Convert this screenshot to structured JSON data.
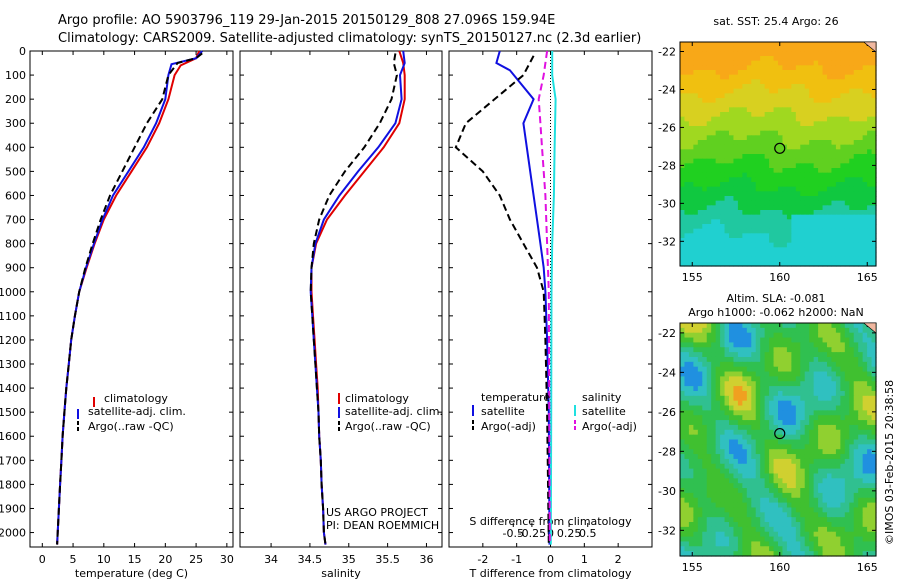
{
  "header": {
    "line1": "Argo profile: AO 5903796_119 29-Jan-2015 20150129_808 27.096S 159.94E",
    "line2": "Climatology: CARS2009. Satellite-adjusted climatology: synTS_20150127.nc (2.3d earlier)"
  },
  "footer_stamp": "©IMOS 03-Feb-2015 20:38:58",
  "colors": {
    "climatology": "#e00000",
    "satellite": "#1010e0",
    "argo": "#000000",
    "sat_salinity": "#20e0e0",
    "argo_adj_salinity": "#e010e0"
  },
  "chart_data": [
    {
      "type": "line",
      "id": "temperature",
      "xlabel": "temperature (deg C)",
      "ylabel": "",
      "xlim": [
        -2,
        31
      ],
      "ylim": [
        2060,
        0
      ],
      "xticks": [
        0,
        5,
        10,
        15,
        20,
        25,
        30
      ],
      "yticks": [
        0,
        100,
        200,
        300,
        400,
        500,
        600,
        700,
        800,
        900,
        1000,
        1100,
        1200,
        1300,
        1400,
        1500,
        1600,
        1700,
        1800,
        1900,
        2000
      ],
      "legend": [
        "climatology",
        "satellite-adj. clim.",
        "Argo(..raw -QC)"
      ],
      "series": [
        {
          "name": "climatology",
          "color": "#e00000",
          "dash": "",
          "points": [
            [
              25.5,
              0
            ],
            [
              25,
              30
            ],
            [
              22.5,
              60
            ],
            [
              21.5,
              100
            ],
            [
              20.5,
              200
            ],
            [
              19,
              300
            ],
            [
              17,
              400
            ],
            [
              14.5,
              500
            ],
            [
              12,
              600
            ],
            [
              10,
              700
            ],
            [
              8.5,
              800
            ],
            [
              7.2,
              900
            ],
            [
              6,
              1000
            ],
            [
              5.3,
              1100
            ],
            [
              4.7,
              1200
            ],
            [
              4.3,
              1300
            ],
            [
              3.9,
              1400
            ],
            [
              3.6,
              1500
            ],
            [
              3.3,
              1600
            ],
            [
              3.1,
              1700
            ],
            [
              2.9,
              1800
            ],
            [
              2.7,
              1900
            ],
            [
              2.5,
              2000
            ],
            [
              2.4,
              2050
            ]
          ]
        },
        {
          "name": "satellite-adj. clim.",
          "color": "#1010e0",
          "dash": "",
          "points": [
            [
              26,
              0
            ],
            [
              25,
              30
            ],
            [
              21,
              55
            ],
            [
              20.5,
              100
            ],
            [
              20,
              200
            ],
            [
              18.5,
              300
            ],
            [
              16.5,
              400
            ],
            [
              14,
              500
            ],
            [
              11.5,
              600
            ],
            [
              9.8,
              700
            ],
            [
              8.4,
              800
            ],
            [
              7.1,
              900
            ],
            [
              6,
              1000
            ],
            [
              5.3,
              1100
            ],
            [
              4.7,
              1200
            ],
            [
              4.3,
              1300
            ],
            [
              3.9,
              1400
            ],
            [
              3.6,
              1500
            ],
            [
              3.3,
              1600
            ],
            [
              3.1,
              1700
            ],
            [
              2.9,
              1800
            ],
            [
              2.7,
              1900
            ],
            [
              2.5,
              2000
            ],
            [
              2.4,
              2050
            ]
          ]
        },
        {
          "name": "Argo(..raw -QC)",
          "color": "#000000",
          "dash": "7,4",
          "points": [
            [
              26,
              10
            ],
            [
              25,
              30
            ],
            [
              22,
              50
            ],
            [
              20.5,
              100
            ],
            [
              19.5,
              200
            ],
            [
              17,
              300
            ],
            [
              15,
              400
            ],
            [
              13,
              500
            ],
            [
              11,
              600
            ],
            [
              9.5,
              700
            ],
            [
              8.2,
              800
            ],
            [
              7,
              900
            ],
            [
              6,
              1000
            ],
            [
              5.3,
              1100
            ],
            [
              4.7,
              1200
            ],
            [
              4.3,
              1300
            ],
            [
              3.9,
              1400
            ],
            [
              3.6,
              1500
            ],
            [
              3.3,
              1600
            ],
            [
              3.1,
              1700
            ],
            [
              2.9,
              1800
            ],
            [
              2.7,
              1900
            ],
            [
              2.5,
              2000
            ],
            [
              2.4,
              2050
            ]
          ]
        }
      ]
    },
    {
      "type": "line",
      "id": "salinity",
      "xlabel": "salinity",
      "ylabel": "",
      "xlim": [
        33.6,
        36.2
      ],
      "ylim": [
        2060,
        0
      ],
      "xticks": [
        34,
        34.5,
        35,
        35.5,
        36
      ],
      "legend": [
        "climatology",
        "satellite-adj. clim.",
        "Argo(..raw -QC)"
      ],
      "annotation": [
        "US ARGO PROJECT",
        "PI: DEAN ROEMMICH"
      ],
      "series": [
        {
          "name": "climatology",
          "color": "#e00000",
          "dash": "",
          "points": [
            [
              35.65,
              0
            ],
            [
              35.7,
              50
            ],
            [
              35.72,
              100
            ],
            [
              35.72,
              200
            ],
            [
              35.65,
              300
            ],
            [
              35.45,
              400
            ],
            [
              35.2,
              500
            ],
            [
              34.95,
              600
            ],
            [
              34.72,
              700
            ],
            [
              34.58,
              800
            ],
            [
              34.52,
              900
            ],
            [
              34.52,
              1000
            ],
            [
              34.54,
              1100
            ],
            [
              34.56,
              1200
            ],
            [
              34.58,
              1300
            ],
            [
              34.6,
              1400
            ],
            [
              34.61,
              1500
            ],
            [
              34.62,
              1600
            ],
            [
              34.64,
              1700
            ],
            [
              34.65,
              1800
            ],
            [
              34.67,
              1900
            ],
            [
              34.68,
              2000
            ],
            [
              34.7,
              2050
            ]
          ]
        },
        {
          "name": "satellite-adj. clim.",
          "color": "#1010e0",
          "dash": "",
          "points": [
            [
              35.7,
              0
            ],
            [
              35.72,
              50
            ],
            [
              35.66,
              100
            ],
            [
              35.68,
              200
            ],
            [
              35.6,
              300
            ],
            [
              35.38,
              400
            ],
            [
              35.12,
              500
            ],
            [
              34.88,
              600
            ],
            [
              34.68,
              700
            ],
            [
              34.57,
              800
            ],
            [
              34.52,
              900
            ],
            [
              34.51,
              1000
            ],
            [
              34.53,
              1100
            ],
            [
              34.55,
              1200
            ],
            [
              34.57,
              1300
            ],
            [
              34.59,
              1400
            ],
            [
              34.61,
              1500
            ],
            [
              34.62,
              1600
            ],
            [
              34.64,
              1700
            ],
            [
              34.65,
              1800
            ],
            [
              34.67,
              1900
            ],
            [
              34.68,
              2000
            ],
            [
              34.7,
              2050
            ]
          ]
        },
        {
          "name": "Argo(..raw -QC)",
          "color": "#000000",
          "dash": "7,4",
          "points": [
            [
              35.6,
              10
            ],
            [
              35.58,
              50
            ],
            [
              35.62,
              100
            ],
            [
              35.55,
              200
            ],
            [
              35.4,
              300
            ],
            [
              35.2,
              400
            ],
            [
              34.95,
              500
            ],
            [
              34.75,
              600
            ],
            [
              34.62,
              700
            ],
            [
              34.55,
              800
            ],
            [
              34.52,
              900
            ],
            [
              34.51,
              1000
            ],
            [
              34.53,
              1100
            ],
            [
              34.55,
              1200
            ],
            [
              34.57,
              1300
            ],
            [
              34.59,
              1400
            ],
            [
              34.61,
              1500
            ],
            [
              34.62,
              1600
            ],
            [
              34.64,
              1700
            ],
            [
              34.65,
              1800
            ],
            [
              34.67,
              1900
            ],
            [
              34.68,
              2000
            ],
            [
              34.7,
              2050
            ]
          ]
        }
      ]
    },
    {
      "type": "line",
      "id": "difference",
      "xlabel": "T difference from climatology",
      "xlabel_top": "S difference from climatology",
      "ylabel": "",
      "xlim": [
        -3,
        3
      ],
      "ylim": [
        2060,
        0
      ],
      "xticks": [
        -2,
        -1,
        0,
        1,
        2
      ],
      "sticks": [
        -0.5,
        -0.25,
        0,
        0.25,
        0.5
      ],
      "sticks_labels": [
        "-0.5",
        "-0.25",
        "0",
        "0.25",
        "0.5"
      ],
      "legend_headers": [
        "temperature",
        "salinity"
      ],
      "legend": [
        "satellite",
        "Argo(-adj)",
        "satellite",
        "Argo(-adj)"
      ],
      "series": [
        {
          "name": "temperature satellite",
          "color": "#1010e0",
          "dash": "",
          "points": [
            [
              -1.5,
              0
            ],
            [
              -1.6,
              50
            ],
            [
              -1.2,
              80
            ],
            [
              -0.5,
              200
            ],
            [
              -0.8,
              300
            ],
            [
              -0.7,
              400
            ],
            [
              -0.5,
              600
            ],
            [
              -0.4,
              700
            ],
            [
              -0.3,
              800
            ],
            [
              -0.2,
              900
            ],
            [
              -0.15,
              1000
            ],
            [
              -0.1,
              1200
            ],
            [
              -0.05,
              1500
            ],
            [
              -0.03,
              2050
            ]
          ]
        },
        {
          "name": "temperature Argo(-adj)",
          "color": "#000000",
          "dash": "7,4",
          "points": [
            [
              -0.5,
              20
            ],
            [
              -0.8,
              100
            ],
            [
              -2.5,
              300
            ],
            [
              -2.8,
              400
            ],
            [
              -2,
              500
            ],
            [
              -1.5,
              600
            ],
            [
              -1.2,
              700
            ],
            [
              -0.8,
              800
            ],
            [
              -0.4,
              900
            ],
            [
              -0.2,
              1000
            ],
            [
              -0.15,
              1200
            ],
            [
              -0.1,
              1500
            ],
            [
              -0.05,
              2050
            ]
          ]
        },
        {
          "name": "salinity satellite",
          "color": "#20e0e0",
          "dash": "",
          "points": [
            [
              0.05,
              0
            ],
            [
              0.05,
              100
            ],
            [
              0.15,
              200
            ],
            [
              0.12,
              400
            ],
            [
              0.1,
              600
            ],
            [
              0.05,
              800
            ],
            [
              0.03,
              1000
            ],
            [
              0.02,
              1500
            ],
            [
              0.01,
              2050
            ]
          ]
        },
        {
          "name": "salinity Argo(-adj)",
          "color": "#e010e0",
          "dash": "7,4",
          "points": [
            [
              -0.1,
              0
            ],
            [
              -0.2,
              100
            ],
            [
              -0.35,
              200
            ],
            [
              -0.3,
              300
            ],
            [
              -0.25,
              400
            ],
            [
              -0.2,
              500
            ],
            [
              -0.15,
              600
            ],
            [
              -0.1,
              800
            ],
            [
              -0.05,
              1000
            ],
            [
              -0.02,
              2050
            ]
          ]
        }
      ]
    },
    {
      "type": "heatmap",
      "id": "sst_map",
      "title": "sat. SST: 25.4  Argo: 26",
      "xlim": [
        154.3,
        165.5
      ],
      "ylim": [
        -33.3,
        -21.5
      ],
      "xticks": [
        155,
        160,
        165
      ],
      "yticks": [
        -22,
        -24,
        -26,
        -28,
        -30,
        -32
      ],
      "marker": [
        160,
        -27.1
      ]
    },
    {
      "type": "heatmap",
      "id": "sla_map",
      "title": "Altim. SLA: -0.081",
      "subtitle": "Argo h1000: -0.062 h2000: NaN",
      "xlim": [
        154.3,
        165.5
      ],
      "ylim": [
        -33.3,
        -21.5
      ],
      "xticks": [
        155,
        160,
        165
      ],
      "yticks": [
        -22,
        -24,
        -26,
        -28,
        -30,
        -32
      ],
      "marker": [
        160,
        -27.1
      ]
    }
  ]
}
